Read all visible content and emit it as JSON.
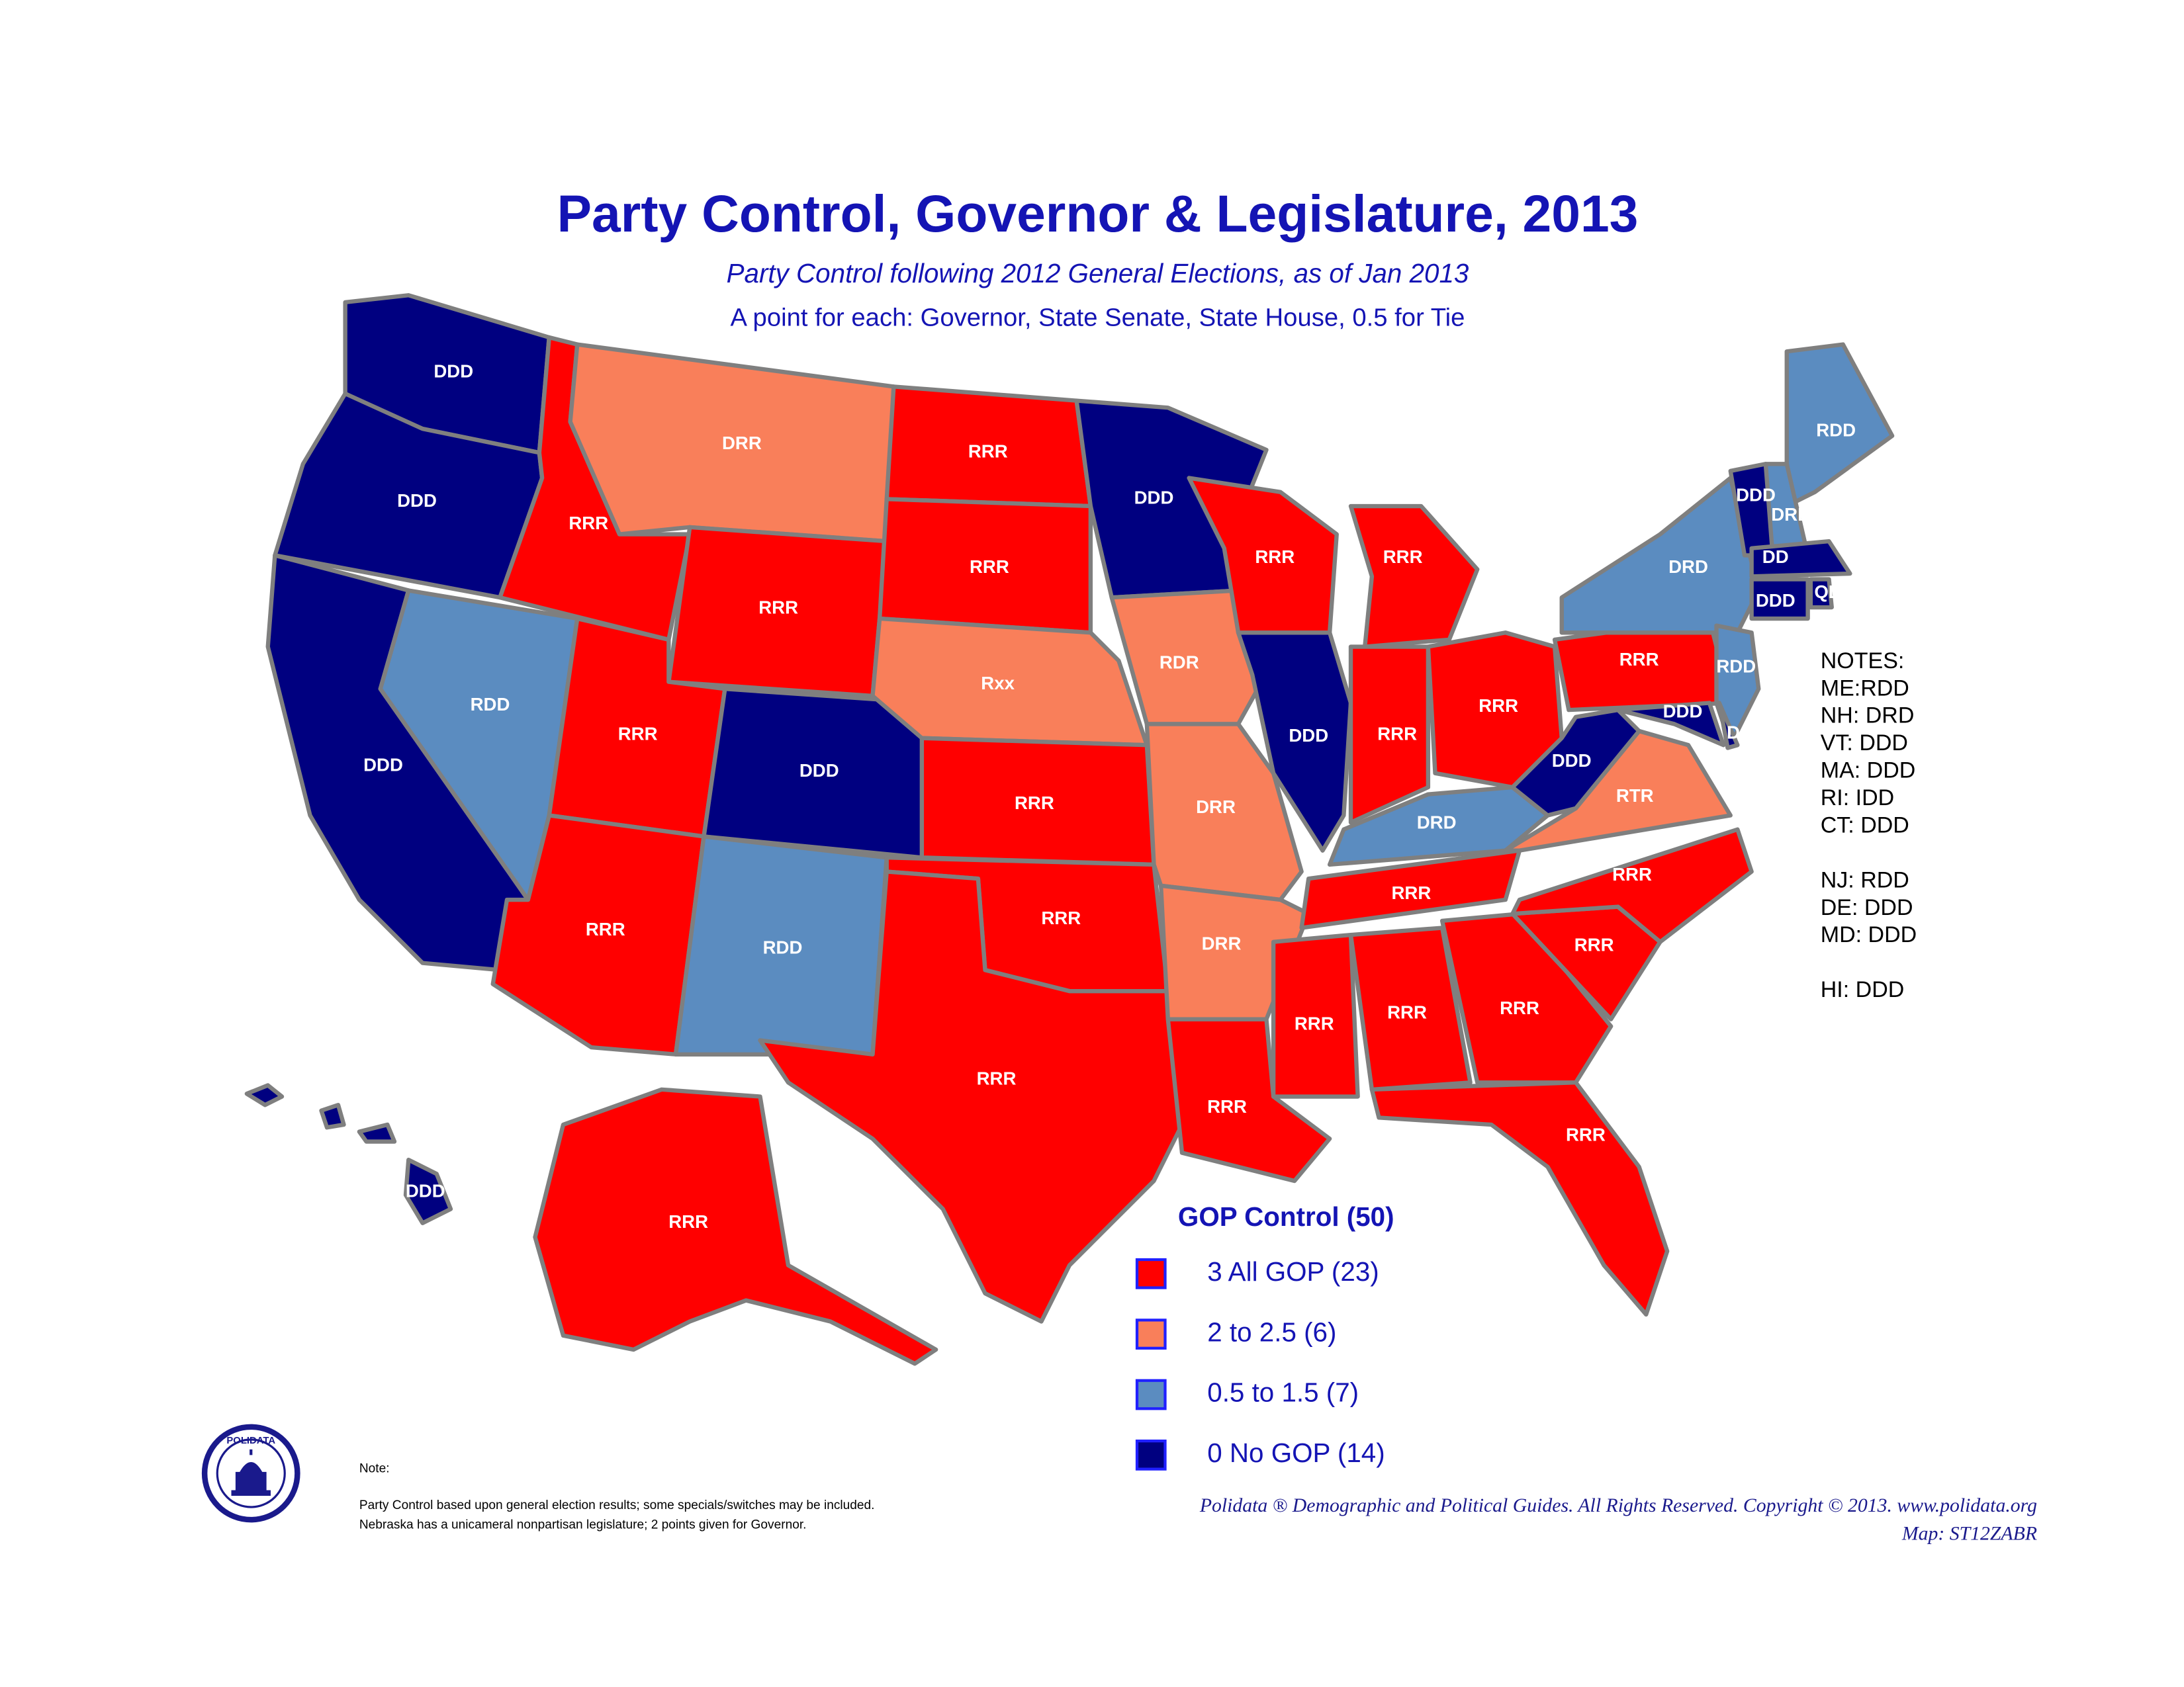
{
  "title": "Party Control, Governor & Legislature, 2013",
  "subtitle": "Party Control following 2012 General Elections, as of Jan 2013",
  "subtitle2": "A point for each: Governor, State Senate, State House, 0.5 for Tie",
  "states": [
    {
      "label": "DDD",
      "color": "#000080"
    },
    {
      "label": "DDD",
      "color": "#000080"
    },
    {
      "label": "DDD",
      "color": "#000080"
    },
    {
      "label": "RDD",
      "color": "#5b8cc0"
    },
    {
      "label": "RRR",
      "color": "#ff0000"
    },
    {
      "label": "DRR",
      "color": "#f97f5a"
    },
    {
      "label": "RRR",
      "color": "#ff0000"
    },
    {
      "label": "RRR",
      "color": "#ff0000"
    },
    {
      "label": "DDD",
      "color": "#000080"
    },
    {
      "label": "RRR",
      "color": "#ff0000"
    },
    {
      "label": "RDD",
      "color": "#5b8cc0"
    },
    {
      "label": "RRR",
      "color": "#ff0000"
    },
    {
      "label": "RRR",
      "color": "#ff0000"
    },
    {
      "label": "Rxx",
      "color": "#f97f5a"
    },
    {
      "label": "RRR",
      "color": "#ff0000"
    },
    {
      "label": "RRR",
      "color": "#ff0000"
    },
    {
      "label": "RRR",
      "color": "#ff0000"
    },
    {
      "label": "DDD",
      "color": "#000080"
    },
    {
      "label": "RDR",
      "color": "#f97f5a"
    },
    {
      "label": "DRR",
      "color": "#f97f5a"
    },
    {
      "label": "DRR",
      "color": "#f97f5a"
    },
    {
      "label": "RRR",
      "color": "#ff0000"
    },
    {
      "label": "RRR",
      "color": "#ff0000"
    },
    {
      "label": "DDD",
      "color": "#000080"
    },
    {
      "label": "RRR",
      "color": "#ff0000"
    },
    {
      "label": "RRR",
      "color": "#ff0000"
    },
    {
      "label": "RRR",
      "color": "#ff0000"
    },
    {
      "label": "DRD",
      "color": "#5b8cc0"
    },
    {
      "label": "RRR",
      "color": "#ff0000"
    },
    {
      "label": "RRR",
      "color": "#ff0000"
    },
    {
      "label": "RRR",
      "color": "#ff0000"
    },
    {
      "label": "RRR",
      "color": "#ff0000"
    },
    {
      "label": "RRR",
      "color": "#ff0000"
    },
    {
      "label": "RRR",
      "color": "#ff0000"
    },
    {
      "label": "RRR",
      "color": "#ff0000"
    },
    {
      "label": "RTR",
      "color": "#f97f5a"
    },
    {
      "label": "DDD",
      "color": "#000080"
    },
    {
      "label": "RRR",
      "color": "#ff0000"
    },
    {
      "label": "DRD",
      "color": "#5b8cc0"
    },
    {
      "label": "RDD",
      "color": "#5b8cc0"
    },
    {
      "label": "DRD",
      "color": "#5b8cc0"
    },
    {
      "label": "DDD",
      "color": "#000080"
    },
    {
      "label": "DD",
      "color": "#000080"
    },
    {
      "label": "DDD",
      "color": "#000080"
    },
    {
      "label": "QDD",
      "color": "#000080"
    },
    {
      "label": "RDD",
      "color": "#5b8cc0"
    },
    {
      "label": "DDD",
      "color": "#000080"
    },
    {
      "label": "D",
      "color": "#000080"
    },
    {
      "label": "DDD",
      "color": "#000080"
    },
    {
      "label": "RRR",
      "color": "#ff0000"
    }
  ],
  "notes": [
    "NOTES:",
    "ME:RDD",
    "NH: DRD",
    "VT: DDD",
    "MA: DDD",
    "RI: IDD",
    "CT: DDD",
    "NJ: RDD",
    "DE: DDD",
    "MD: DDD",
    "HI: DDD"
  ],
  "legend": {
    "title": "GOP Control (50)",
    "items": [
      {
        "label": "3 All GOP (23)",
        "color": "#ff0000"
      },
      {
        "label": "2  to 2.5 (6)",
        "color": "#f97f5a"
      },
      {
        "label": "0.5 to 1.5 (7)",
        "color": "#5b8cc0"
      },
      {
        "label": "0 No GOP (14)",
        "color": "#000080"
      }
    ]
  },
  "footnote": {
    "heading": "Note:",
    "lines": [
      "Party Control based upon general election results; some specials/switches may be included.",
      "Nebraska has a unicameral nonpartisan legislature;  2 points given for Governor."
    ]
  },
  "logo": "POLIDATA",
  "copyright": "Polidata ®  Demographic and Political Guides. All Rights Reserved. Copyright © 2013. www.polidata.org",
  "map_id": "Map: ST12ZABR"
}
